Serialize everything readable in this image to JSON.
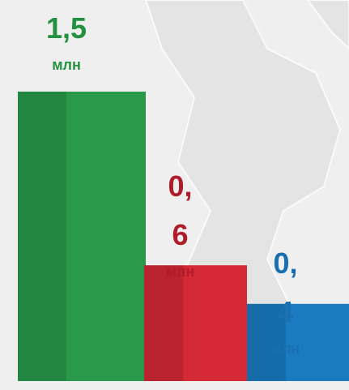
{
  "chart_data": {
    "type": "bar",
    "categories": [
      null,
      null,
      null
    ],
    "values": [
      1.5,
      0.6,
      0.4
    ],
    "value_labels": [
      "1,5",
      "0,6",
      "0,4"
    ],
    "unit": "млн",
    "colors": [
      "#2a9a4a",
      "#d42a35",
      "#1a7bc0"
    ],
    "label_colors": [
      "#23913f",
      "#b01c2a",
      "#1a6fb0"
    ]
  }
}
